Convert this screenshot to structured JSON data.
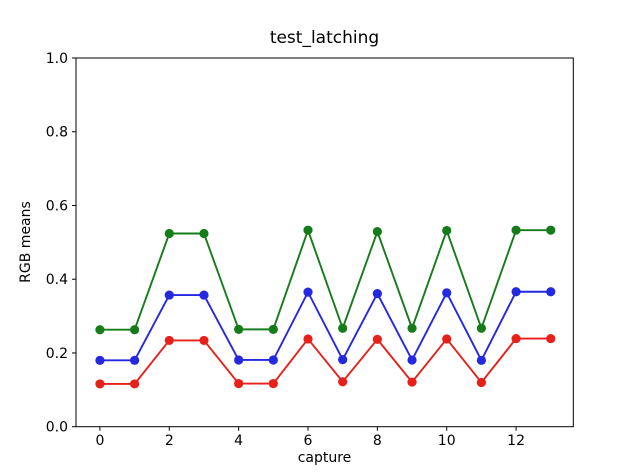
{
  "chart_data": {
    "type": "line",
    "title": "test_latching",
    "xlabel": "capture",
    "ylabel": "RGB means",
    "x": [
      0,
      1,
      2,
      3,
      4,
      5,
      6,
      7,
      8,
      9,
      10,
      11,
      12,
      13
    ],
    "series": [
      {
        "name": "red",
        "color": "#e7211a",
        "values": [
          0.116,
          0.116,
          0.234,
          0.234,
          0.117,
          0.117,
          0.238,
          0.122,
          0.237,
          0.121,
          0.238,
          0.12,
          0.239,
          0.239
        ]
      },
      {
        "name": "green",
        "color": "#167c1a",
        "values": [
          0.263,
          0.263,
          0.524,
          0.524,
          0.264,
          0.264,
          0.533,
          0.267,
          0.529,
          0.267,
          0.532,
          0.267,
          0.533,
          0.533
        ]
      },
      {
        "name": "blue",
        "color": "#2428e0",
        "values": [
          0.18,
          0.18,
          0.357,
          0.357,
          0.181,
          0.181,
          0.365,
          0.182,
          0.361,
          0.181,
          0.363,
          0.18,
          0.366,
          0.366
        ]
      }
    ],
    "xlim": [
      -0.69,
      13.65
    ],
    "ylim": [
      0.0,
      1.0
    ],
    "xticks": [
      {
        "pos": 0,
        "label": "0"
      },
      {
        "pos": 2,
        "label": "2"
      },
      {
        "pos": 4,
        "label": "4"
      },
      {
        "pos": 6,
        "label": "6"
      },
      {
        "pos": 8,
        "label": "8"
      },
      {
        "pos": 10,
        "label": "10"
      },
      {
        "pos": 12,
        "label": "12"
      }
    ],
    "yticks": [
      {
        "pos": 0.0,
        "label": "0.0"
      },
      {
        "pos": 0.2,
        "label": "0.2"
      },
      {
        "pos": 0.4,
        "label": "0.4"
      },
      {
        "pos": 0.6,
        "label": "0.6"
      },
      {
        "pos": 0.8,
        "label": "0.8"
      },
      {
        "pos": 1.0,
        "label": "1.0"
      }
    ],
    "grid": false,
    "legend": null,
    "marker": "circle",
    "axis_color": "#000000",
    "background": "#ffffff"
  }
}
